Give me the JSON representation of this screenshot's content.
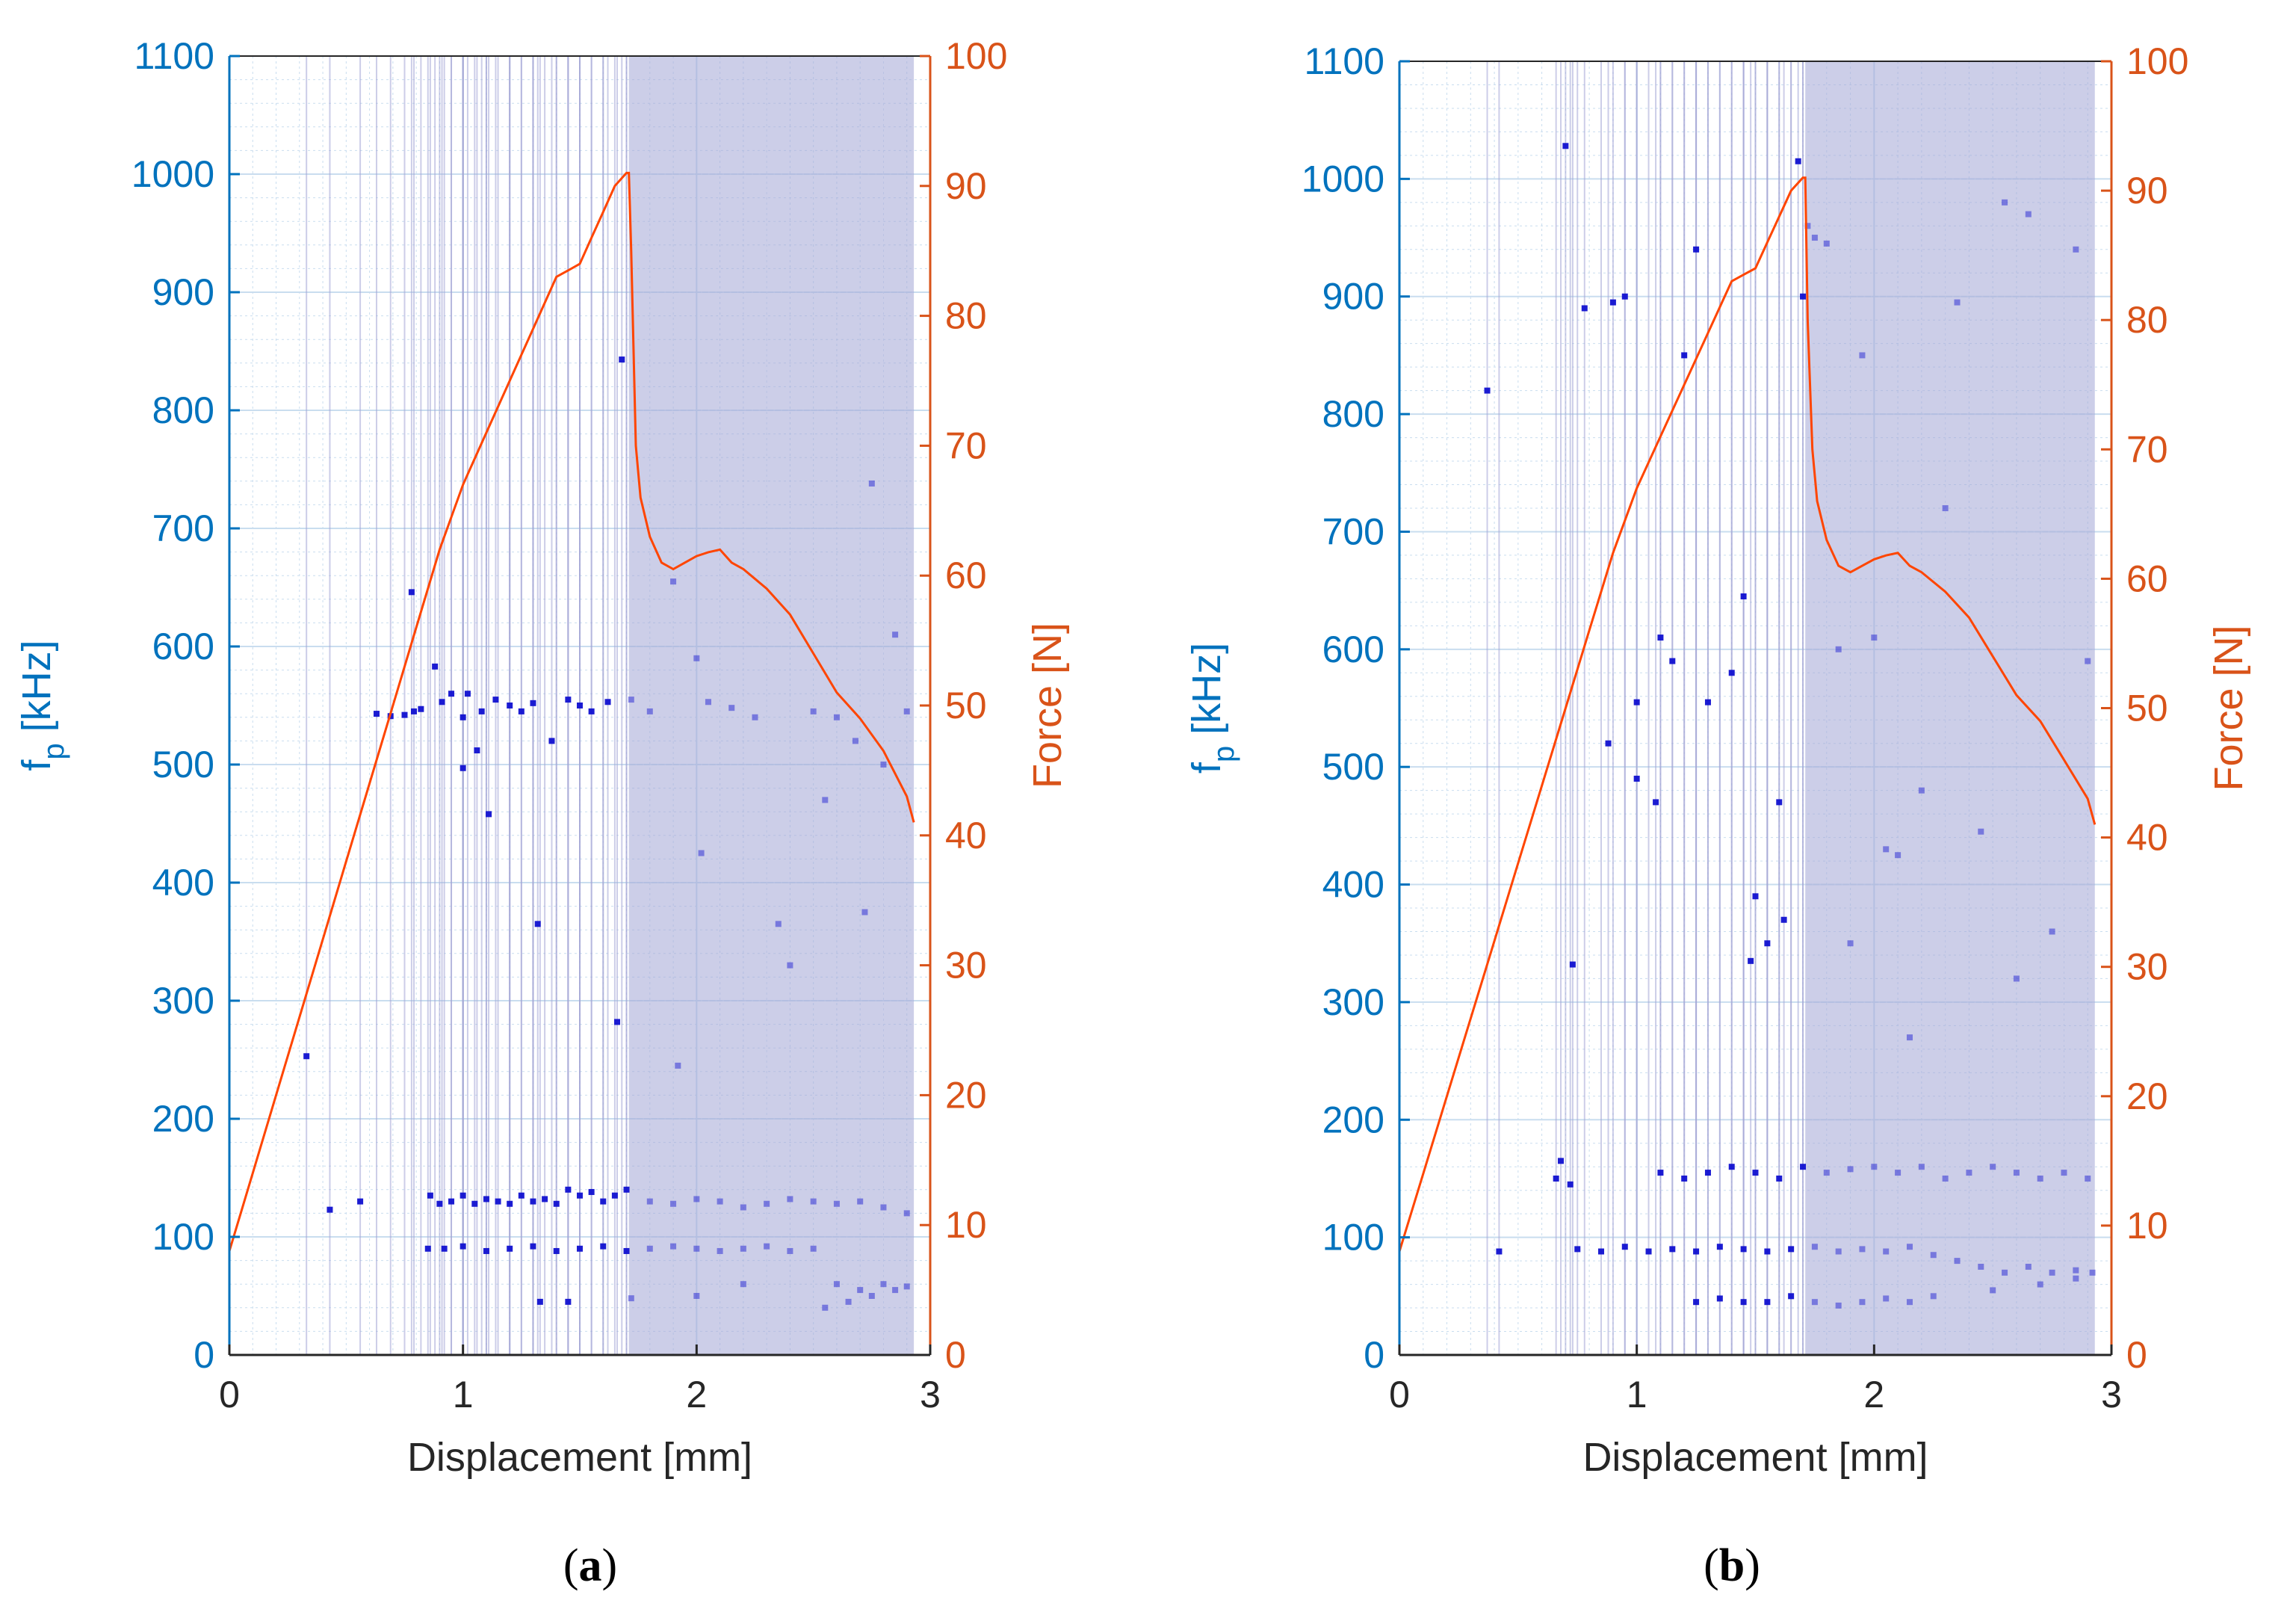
{
  "colors": {
    "left_axis": "#0072BD",
    "right_axis": "#D95319",
    "force_line": "#FF4500",
    "scatter": "#1010D0",
    "band": "#A3A6D6",
    "grid": "#C9DDEF",
    "x_axis": "#262626"
  },
  "chart_data": [
    {
      "type": "scatter",
      "panel_label": "a",
      "xlabel": "Displacement [mm]",
      "ylabel_left": {
        "main": "f",
        "sub": "p",
        "unit": " [kHz]"
      },
      "ylabel_right": "Force [N]",
      "xlim": [
        0,
        3
      ],
      "ylim_left": [
        0,
        1100
      ],
      "ylim_right": [
        0,
        100
      ],
      "xticks": [
        "0",
        "1",
        "2",
        "3"
      ],
      "xtick_values": [
        0,
        1,
        2,
        3
      ],
      "yticks_left": [
        "0",
        "100",
        "200",
        "300",
        "400",
        "500",
        "600",
        "700",
        "800",
        "900",
        "1000",
        "1100"
      ],
      "ytick_left_values": [
        0,
        100,
        200,
        300,
        400,
        500,
        600,
        700,
        800,
        900,
        1000,
        1100
      ],
      "yticks_right": [
        "0",
        "10",
        "20",
        "30",
        "40",
        "50",
        "60",
        "70",
        "80",
        "90",
        "100"
      ],
      "ytick_right_values": [
        0,
        10,
        20,
        30,
        40,
        50,
        60,
        70,
        80,
        90,
        100
      ],
      "dense_region": [
        1.71,
        2.93
      ],
      "force_series": {
        "name": "Force",
        "x": [
          0,
          0.1,
          0.2,
          0.3,
          0.4,
          0.5,
          0.6,
          0.7,
          0.8,
          0.9,
          1.0,
          1.1,
          1.2,
          1.3,
          1.4,
          1.45,
          1.5,
          1.55,
          1.6,
          1.65,
          1.7,
          1.71,
          1.72,
          1.74,
          1.76,
          1.8,
          1.85,
          1.9,
          1.95,
          2.0,
          2.05,
          2.1,
          2.15,
          2.2,
          2.3,
          2.4,
          2.5,
          2.6,
          2.7,
          2.8,
          2.9,
          2.93
        ],
        "y": [
          8,
          14,
          20,
          26,
          32,
          38,
          44,
          50,
          56,
          62,
          67,
          71,
          75,
          79,
          83,
          83.5,
          84,
          86,
          88,
          90,
          91,
          91,
          85,
          70,
          66,
          63,
          61,
          60.5,
          61,
          61.5,
          61.8,
          62,
          61,
          60.5,
          59,
          57,
          54,
          51,
          49,
          46.5,
          43,
          41
        ]
      },
      "fp_series": {
        "name": "f_p",
        "x": [
          0.33,
          0.43,
          0.56,
          0.63,
          0.69,
          0.75,
          0.78,
          0.79,
          0.82,
          0.88,
          0.91,
          0.95,
          1.0,
          1.0,
          1.02,
          1.06,
          1.08,
          1.11,
          1.14,
          1.2,
          1.25,
          1.3,
          1.32,
          1.38,
          1.45,
          1.5,
          1.55,
          1.62,
          1.66,
          1.68,
          1.72,
          1.8,
          1.9,
          1.92,
          2.0,
          2.02,
          2.05,
          2.15,
          2.25,
          2.35,
          2.4,
          2.5,
          2.55,
          2.6,
          2.68,
          2.72,
          2.75,
          2.8,
          2.85,
          2.9,
          0.86,
          0.9,
          0.95,
          1.0,
          1.05,
          1.1,
          1.15,
          1.2,
          1.25,
          1.3,
          1.35,
          1.4,
          1.45,
          1.5,
          1.55,
          1.6,
          1.65,
          1.7,
          1.8,
          1.9,
          2.0,
          2.1,
          2.2,
          2.3,
          2.4,
          2.5,
          2.6,
          2.7,
          2.8,
          2.9,
          0.85,
          0.92,
          1.0,
          1.1,
          1.2,
          1.3,
          1.4,
          1.5,
          1.6,
          1.7,
          1.8,
          1.9,
          2.0,
          2.1,
          2.2,
          2.3,
          2.4,
          2.5,
          2.6,
          2.7,
          2.8,
          2.9,
          1.33,
          1.45,
          1.72,
          2.0,
          2.2,
          2.55,
          2.65,
          2.75,
          2.85
        ],
        "y": [
          253,
          123,
          130,
          543,
          541,
          542,
          646,
          545,
          547,
          583,
          553,
          560,
          540,
          497,
          560,
          512,
          545,
          458,
          555,
          550,
          545,
          552,
          365,
          520,
          555,
          550,
          545,
          553,
          282,
          843,
          555,
          545,
          655,
          245,
          590,
          425,
          553,
          548,
          540,
          365,
          330,
          545,
          470,
          540,
          520,
          375,
          738,
          500,
          610,
          545,
          135,
          128,
          130,
          135,
          128,
          132,
          130,
          128,
          135,
          130,
          132,
          128,
          140,
          135,
          138,
          130,
          135,
          140,
          130,
          128,
          132,
          130,
          125,
          128,
          132,
          130,
          128,
          130,
          125,
          120,
          90,
          90,
          92,
          88,
          90,
          92,
          88,
          90,
          92,
          88,
          90,
          92,
          90,
          88,
          90,
          92,
          88,
          90,
          60,
          55,
          60,
          58,
          45,
          45,
          48,
          50,
          60,
          40,
          45,
          50,
          55
        ]
      }
    },
    {
      "type": "scatter",
      "panel_label": "b",
      "xlabel": "Displacement [mm]",
      "ylabel_left": {
        "main": "f",
        "sub": "p",
        "unit": " [kHz]"
      },
      "ylabel_right": "Force [N]",
      "xlim": [
        0,
        3
      ],
      "ylim_left": [
        0,
        1100
      ],
      "ylim_right": [
        0,
        100
      ],
      "xticks": [
        "0",
        "1",
        "2",
        "3"
      ],
      "xtick_values": [
        0,
        1,
        2,
        3
      ],
      "yticks_left": [
        "0",
        "100",
        "200",
        "300",
        "400",
        "500",
        "600",
        "700",
        "800",
        "900",
        "1000",
        "1100"
      ],
      "ytick_left_values": [
        0,
        100,
        200,
        300,
        400,
        500,
        600,
        700,
        800,
        900,
        1000,
        1100
      ],
      "yticks_right": [
        "0",
        "10",
        "20",
        "30",
        "40",
        "50",
        "60",
        "70",
        "80",
        "90",
        "100"
      ],
      "ytick_right_values": [
        0,
        10,
        20,
        30,
        40,
        50,
        60,
        70,
        80,
        90,
        100
      ],
      "dense_region": [
        1.71,
        2.93
      ],
      "force_series": {
        "name": "Force",
        "x": [
          0,
          0.1,
          0.2,
          0.3,
          0.4,
          0.5,
          0.6,
          0.7,
          0.8,
          0.9,
          1.0,
          1.1,
          1.2,
          1.3,
          1.4,
          1.45,
          1.5,
          1.55,
          1.6,
          1.65,
          1.7,
          1.71,
          1.72,
          1.74,
          1.76,
          1.8,
          1.85,
          1.9,
          1.95,
          2.0,
          2.05,
          2.1,
          2.15,
          2.2,
          2.3,
          2.4,
          2.5,
          2.6,
          2.7,
          2.8,
          2.9,
          2.93
        ],
        "y": [
          8,
          14,
          20,
          26,
          32,
          38,
          44,
          50,
          56,
          62,
          67,
          71,
          75,
          79,
          83,
          83.5,
          84,
          86,
          88,
          90,
          91,
          91,
          80,
          70,
          66,
          63,
          61,
          60.5,
          61,
          61.5,
          61.8,
          62,
          61,
          60.5,
          59,
          57,
          54,
          51,
          49,
          46,
          43,
          41
        ]
      },
      "fp_series": {
        "name": "f_p",
        "x": [
          0.37,
          0.42,
          0.66,
          0.7,
          0.73,
          0.78,
          0.88,
          0.9,
          0.95,
          1.0,
          1.0,
          1.08,
          1.1,
          1.15,
          1.2,
          1.25,
          1.3,
          1.4,
          1.45,
          1.48,
          1.5,
          1.55,
          1.6,
          1.62,
          1.68,
          1.7,
          1.72,
          1.75,
          1.8,
          1.85,
          1.9,
          1.95,
          2.0,
          2.05,
          2.1,
          2.15,
          2.2,
          2.3,
          2.35,
          2.45,
          2.55,
          2.6,
          2.65,
          2.75,
          2.85,
          2.9,
          0.68,
          0.72,
          1.1,
          1.2,
          1.3,
          1.4,
          1.5,
          1.6,
          1.7,
          1.8,
          1.9,
          2.0,
          2.1,
          2.2,
          2.3,
          2.4,
          2.5,
          2.6,
          2.7,
          2.8,
          2.9,
          0.75,
          0.85,
          0.95,
          1.05,
          1.15,
          1.25,
          1.35,
          1.45,
          1.55,
          1.65,
          1.75,
          1.85,
          1.95,
          2.05,
          2.15,
          2.25,
          2.35,
          2.45,
          2.55,
          2.65,
          2.75,
          2.85,
          2.92,
          1.25,
          1.35,
          1.45,
          1.55,
          1.65,
          1.75,
          1.85,
          1.95,
          2.05,
          2.15,
          2.25,
          2.5,
          2.7,
          2.85
        ],
        "y": [
          820,
          88,
          150,
          1028,
          332,
          890,
          520,
          895,
          900,
          555,
          490,
          470,
          610,
          590,
          850,
          940,
          555,
          580,
          645,
          335,
          390,
          350,
          470,
          370,
          1015,
          900,
          960,
          950,
          945,
          600,
          350,
          850,
          610,
          430,
          425,
          270,
          480,
          720,
          895,
          445,
          980,
          320,
          970,
          360,
          940,
          590,
          165,
          145,
          155,
          150,
          155,
          160,
          155,
          150,
          160,
          155,
          158,
          160,
          155,
          160,
          150,
          155,
          160,
          155,
          150,
          155,
          150,
          90,
          88,
          92,
          88,
          90,
          88,
          92,
          90,
          88,
          90,
          92,
          88,
          90,
          88,
          92,
          85,
          80,
          75,
          70,
          75,
          70,
          72,
          70,
          45,
          48,
          45,
          45,
          50,
          45,
          42,
          45,
          48,
          45,
          50,
          55,
          60,
          65
        ]
      }
    }
  ]
}
